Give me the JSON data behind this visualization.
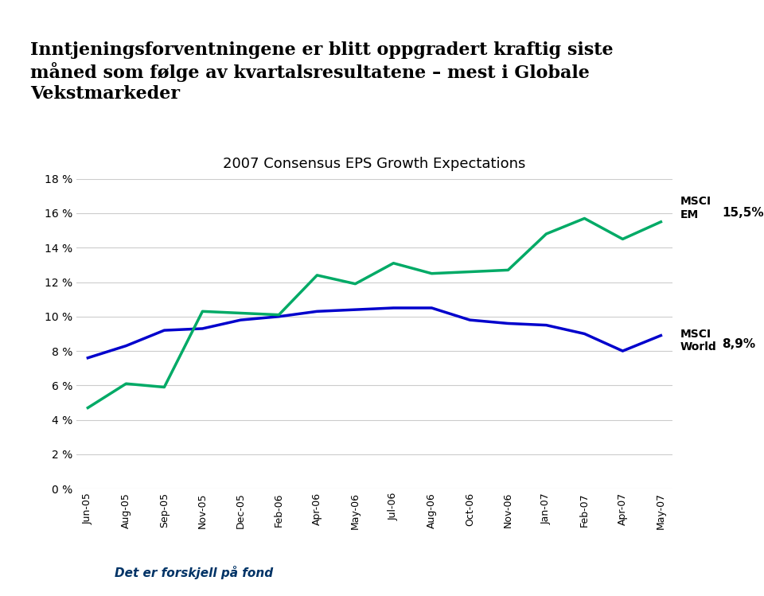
{
  "title_main": "Inntjeningsforventningene er blitt oppgradert kraftig siste\nmåned som følge av kvartalsresultatene – mest i Globale\nVekstmarkeder",
  "chart_title": "2007 Consensus EPS Growth Expectations",
  "x_labels": [
    "Jun-05",
    "Aug-05",
    "Sep-05",
    "Nov-05",
    "Dec-05",
    "Feb-06",
    "Apr-06",
    "May-06",
    "Jul-06",
    "Aug-06",
    "Oct-06",
    "Nov-06",
    "Jan-07",
    "Feb-07",
    "Apr-07",
    "May-07"
  ],
  "msci_world": [
    7.6,
    8.3,
    9.2,
    9.3,
    9.8,
    10.0,
    10.3,
    10.4,
    10.5,
    10.5,
    9.8,
    9.6,
    9.5,
    9.0,
    8.0,
    8.9
  ],
  "msci_em": [
    4.7,
    6.1,
    5.9,
    10.3,
    10.2,
    10.1,
    12.4,
    11.9,
    13.1,
    12.5,
    12.6,
    12.7,
    14.8,
    15.7,
    14.5,
    15.5
  ],
  "world_color": "#0000cc",
  "em_color": "#00aa66",
  "world_label": "MSCI\nWorld",
  "em_label": "MSCI\nEM",
  "world_end_value": "8,9%",
  "em_end_value": "15,5%",
  "footer_text": "Det er forskjell på fond",
  "background_color": "#ffffff",
  "plot_bg_color": "#ffffff",
  "ylim": [
    0,
    18
  ],
  "yticks": [
    0,
    2,
    4,
    6,
    8,
    10,
    12,
    14,
    16,
    18
  ],
  "ytick_labels": [
    "0 %",
    "2 %",
    "4 %",
    "6 %",
    "8 %",
    "10 %",
    "12 %",
    "14 %",
    "16 %",
    "18 %"
  ],
  "grid_color": "#cccccc",
  "footer_bg": "#b8cce4"
}
